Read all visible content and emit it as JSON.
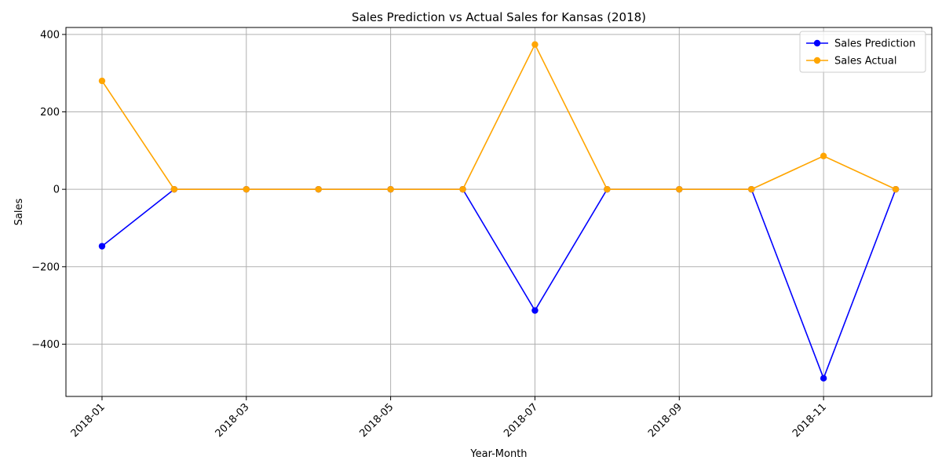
{
  "chart_data": {
    "type": "line",
    "title": "Sales Prediction vs Actual Sales for Kansas (2018)",
    "xlabel": "Year-Month",
    "ylabel": "Sales",
    "x": [
      "2018-01",
      "2018-02",
      "2018-03",
      "2018-04",
      "2018-05",
      "2018-06",
      "2018-07",
      "2018-08",
      "2018-09",
      "2018-10",
      "2018-11",
      "2018-12"
    ],
    "x_ticks": [
      "2018-01",
      "2018-03",
      "2018-05",
      "2018-07",
      "2018-09",
      "2018-11"
    ],
    "ylim": [
      -535,
      418
    ],
    "y_ticks": [
      -400,
      -200,
      0,
      200,
      400
    ],
    "grid": true,
    "legend_position": "top-right",
    "series": [
      {
        "name": "Sales Prediction",
        "color": "#0000ff",
        "values": [
          -147,
          0,
          0,
          0,
          0,
          0,
          -313,
          0,
          0,
          0,
          -488,
          0
        ]
      },
      {
        "name": "Sales Actual",
        "color": "#ffa500",
        "values": [
          280,
          0,
          0,
          0,
          0,
          0,
          374,
          0,
          0,
          0,
          86,
          0
        ]
      }
    ]
  }
}
